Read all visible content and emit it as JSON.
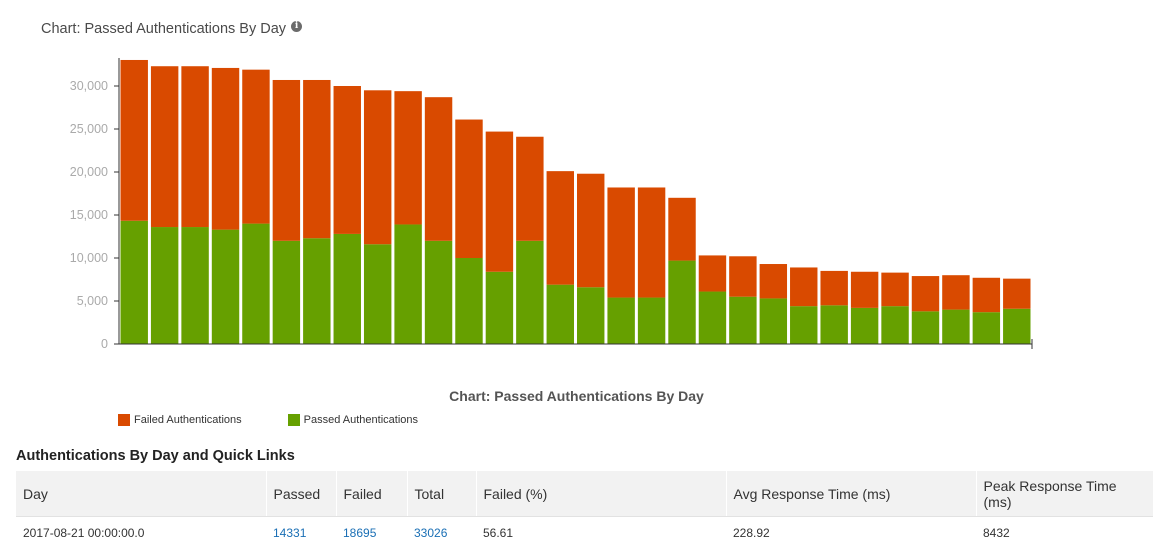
{
  "title": "Chart: Passed Authentications By Day",
  "caption": "Chart: Passed Authentications By Day",
  "colors": {
    "failed": "#d94a00",
    "passed": "#66a000",
    "axis": "#333333",
    "tick_text": "#aaaaaa"
  },
  "chart_data": {
    "type": "bar",
    "stacked": true,
    "title": "Chart: Passed Authentications By Day",
    "ylim": [
      0,
      32000
    ],
    "yticks": [
      "0",
      "5,000",
      "10,000",
      "15,000",
      "20,000",
      "25,000",
      "30,000"
    ],
    "ytick_values": [
      0,
      5000,
      10000,
      15000,
      20000,
      25000,
      30000
    ],
    "legend_position": "bottom-left",
    "series": [
      {
        "name": "Passed Authentications",
        "color": "#66a000",
        "values": [
          14331,
          13600,
          13600,
          13300,
          14000,
          12000,
          12300,
          12800,
          11600,
          13900,
          12000,
          10000,
          8400,
          12000,
          6900,
          6600,
          5400,
          5400,
          9700,
          6100,
          5500,
          5300,
          4400,
          4500,
          4200,
          4400,
          3800,
          4000,
          3700,
          4100
        ]
      },
      {
        "name": "Failed Authentications",
        "color": "#d94a00",
        "values": [
          18695,
          18700,
          18700,
          18800,
          17900,
          18700,
          18400,
          17200,
          17900,
          15500,
          16700,
          16100,
          16300,
          12100,
          13200,
          13200,
          12800,
          12800,
          7300,
          4200,
          4700,
          4000,
          4500,
          4000,
          4200,
          3900,
          4100,
          4000,
          4000,
          3500
        ]
      }
    ]
  },
  "legend": [
    {
      "label": "Failed Authentications",
      "color": "#d94a00"
    },
    {
      "label": "Passed Authentications",
      "color": "#66a000"
    }
  ],
  "table": {
    "title": "Authentications By Day and Quick Links",
    "headers": [
      "Day",
      "Passed",
      "Failed",
      "Total",
      "Failed (%)",
      "Avg Response Time (ms)",
      "Peak Response Time (ms)"
    ],
    "row": {
      "day": "2017-08-21 00:00:00.0",
      "passed": "14331",
      "failed": "18695",
      "total": "33026",
      "failed_pct": "56.61",
      "avg": "228.92",
      "peak": "8432"
    }
  }
}
